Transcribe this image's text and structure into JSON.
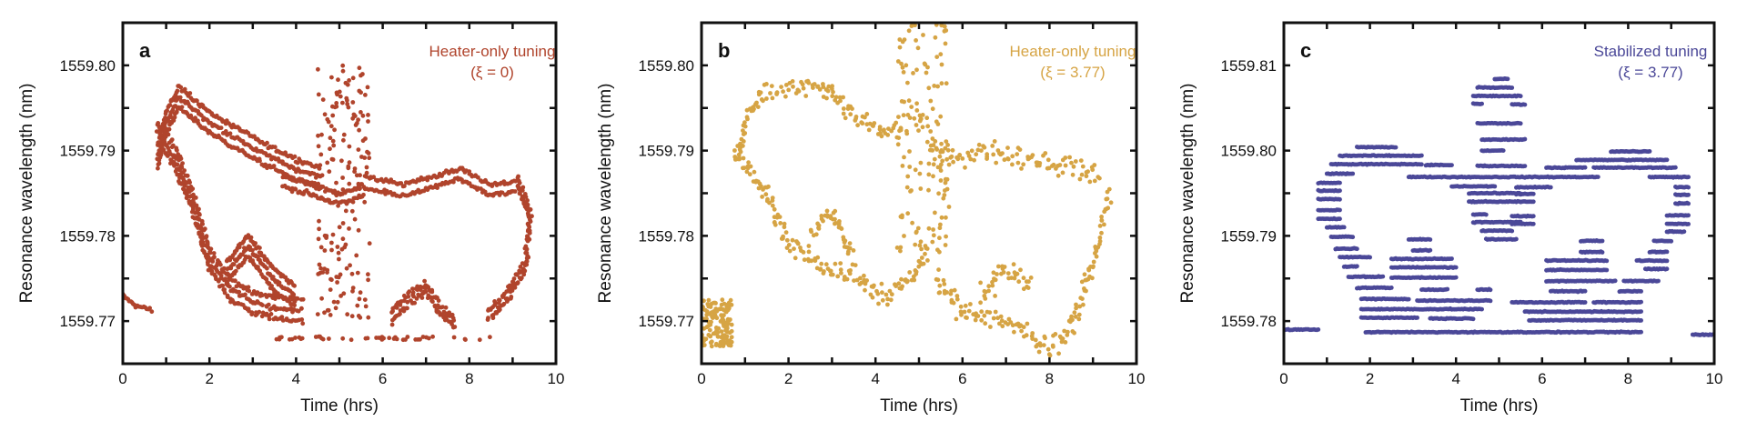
{
  "chart_data": [
    {
      "type": "scatter",
      "panel_label": "a",
      "annotation": [
        "Heater-only tuning",
        "(ξ = 0)"
      ],
      "color": "#b0442c",
      "xlabel": "Time (hrs)",
      "ylabel": "Resonance wavelength (nm)",
      "xlim": [
        0,
        10
      ],
      "ylim": [
        1559.765,
        1559.805
      ],
      "xticks": [
        0,
        2,
        4,
        6,
        8,
        10
      ],
      "xtick_labels": [
        "0",
        "2",
        "4",
        "6",
        "8",
        "10"
      ],
      "yticks": [
        1559.77,
        1559.78,
        1559.79,
        1559.8
      ],
      "ytick_labels": [
        "1559.77",
        "1559.78",
        "1559.79",
        "1559.80"
      ],
      "traces": [
        {
          "pts": [
            [
              0,
              1559.773
            ],
            [
              0.3,
              1559.7718
            ],
            [
              0.7,
              1559.7712
            ]
          ],
          "jitter": [
            0.02,
            0.0003
          ],
          "offsets": [
            0
          ]
        },
        {
          "pts": [
            [
              0.8,
              1559.7905
            ],
            [
              1.0,
              1559.7945
            ],
            [
              1.3,
              1559.7975
            ],
            [
              2.0,
              1559.7945
            ],
            [
              3.0,
              1559.7915
            ],
            [
              4.0,
              1559.789
            ],
            [
              4.6,
              1559.788
            ]
          ],
          "jitter": [
            0.02,
            0.0004
          ],
          "offsets": [
            0,
            -0.0012,
            -0.0024
          ]
        },
        {
          "pts": [
            [
              0.8,
              1559.791
            ],
            [
              1.2,
              1559.788
            ],
            [
              1.6,
              1559.783
            ],
            [
              2.0,
              1559.776
            ],
            [
              2.5,
              1559.7725
            ],
            [
              3.0,
              1559.771
            ],
            [
              3.6,
              1559.7703
            ],
            [
              4.2,
              1559.77
            ]
          ],
          "jitter": [
            0.05,
            0.0005
          ],
          "offsets": [
            0,
            0.0012,
            0.0024
          ]
        },
        {
          "pts": [
            [
              2.4,
              1559.777
            ],
            [
              2.9,
              1559.78
            ],
            [
              3.5,
              1559.776
            ],
            [
              4.0,
              1559.774
            ]
          ],
          "jitter": [
            0.03,
            0.0004
          ],
          "offsets": [
            0,
            -0.0012,
            -0.0024
          ]
        },
        {
          "pts": [
            [
              3.7,
              1559.787
            ],
            [
              4.4,
              1559.786
            ],
            [
              5.0,
              1559.7848
            ],
            [
              5.6,
              1559.786
            ]
          ],
          "jitter": [
            0.03,
            0.0004
          ],
          "offsets": [
            0,
            -0.0012
          ]
        },
        {
          "pts": [
            [
              5.6,
              1559.787
            ],
            [
              6.5,
              1559.786
            ],
            [
              7.2,
              1559.787
            ],
            [
              7.8,
              1559.788
            ],
            [
              8.5,
              1559.786
            ],
            [
              9.1,
              1559.7865
            ]
          ],
          "jitter": [
            0.03,
            0.0004
          ],
          "offsets": [
            0,
            -0.0013
          ]
        },
        {
          "pts": [
            [
              9.1,
              1559.786
            ],
            [
              9.4,
              1559.782
            ],
            [
              9.3,
              1559.776
            ],
            [
              8.8,
              1559.772
            ],
            [
              8.4,
              1559.77
            ]
          ],
          "jitter": [
            0.06,
            0.0005
          ],
          "offsets": [
            0,
            0.001
          ]
        },
        {
          "pts": [
            [
              6.2,
              1559.771
            ],
            [
              6.6,
              1559.773
            ],
            [
              7.0,
              1559.7745
            ],
            [
              7.3,
              1559.772
            ],
            [
              7.7,
              1559.77
            ]
          ],
          "jitter": [
            0.05,
            0.0006
          ],
          "offsets": [
            0,
            -0.001
          ]
        }
      ],
      "blobs": [
        {
          "x": [
            4.5,
            5.7
          ],
          "y": [
            1559.77,
            1559.8
          ],
          "n": 170
        },
        {
          "x": [
            3.5,
            8.5
          ],
          "y": [
            1559.7678,
            1559.7682
          ],
          "n": 45
        }
      ],
      "hlines": []
    },
    {
      "type": "scatter",
      "panel_label": "b",
      "annotation": [
        "Heater-only tuning",
        "(ξ = 3.77)"
      ],
      "color": "#d6a444",
      "xlabel": "Time (hrs)",
      "ylabel": "Resonance wavelength (nm)",
      "xlim": [
        0,
        10
      ],
      "ylim": [
        1559.765,
        1559.805
      ],
      "xticks": [
        0,
        2,
        4,
        6,
        8,
        10
      ],
      "xtick_labels": [
        "0",
        "2",
        "4",
        "6",
        "8",
        "10"
      ],
      "yticks": [
        1559.77,
        1559.78,
        1559.79,
        1559.8
      ],
      "ytick_labels": [
        "1559.77",
        "1559.78",
        "1559.79",
        "1559.80"
      ],
      "traces": [
        {
          "pts": [
            [
              0.8,
              1559.789
            ],
            [
              1.0,
              1559.793
            ],
            [
              1.4,
              1559.797
            ],
            [
              2.0,
              1559.797
            ],
            [
              2.7,
              1559.798
            ],
            [
              3.5,
              1559.794
            ],
            [
              4.2,
              1559.792
            ],
            [
              4.6,
              1559.793
            ]
          ],
          "jitter": [
            0.08,
            0.0018
          ],
          "offsets": [
            0
          ]
        },
        {
          "pts": [
            [
              0.8,
              1559.79
            ],
            [
              1.5,
              1559.785
            ],
            [
              2.0,
              1559.779
            ],
            [
              3.0,
              1559.776
            ],
            [
              3.6,
              1559.775
            ],
            [
              4.2,
              1559.773
            ],
            [
              4.8,
              1559.775
            ],
            [
              5.2,
              1559.778
            ]
          ],
          "jitter": [
            0.08,
            0.0018
          ],
          "offsets": [
            0
          ]
        },
        {
          "pts": [
            [
              2.5,
              1559.78
            ],
            [
              3.0,
              1559.783
            ],
            [
              3.5,
              1559.777
            ]
          ],
          "jitter": [
            0.08,
            0.0018
          ],
          "offsets": [
            0
          ]
        },
        {
          "pts": [
            [
              5.5,
              1559.789
            ],
            [
              6.5,
              1559.79
            ],
            [
              7.5,
              1559.789
            ],
            [
              8.5,
              1559.788
            ],
            [
              9.2,
              1559.787
            ]
          ],
          "jitter": [
            0.08,
            0.0018
          ],
          "offsets": [
            0
          ]
        },
        {
          "pts": [
            [
              5.4,
              1559.775
            ],
            [
              6.0,
              1559.771
            ],
            [
              7.0,
              1559.77
            ],
            [
              8.0,
              1559.767
            ],
            [
              8.4,
              1559.768
            ],
            [
              9.0,
              1559.777
            ],
            [
              9.4,
              1559.785
            ]
          ],
          "jitter": [
            0.1,
            0.0018
          ],
          "offsets": [
            0
          ]
        },
        {
          "pts": [
            [
              6.4,
              1559.773
            ],
            [
              7.0,
              1559.776
            ],
            [
              7.6,
              1559.774
            ]
          ],
          "jitter": [
            0.1,
            0.0018
          ],
          "offsets": [
            0
          ]
        }
      ],
      "blobs": [
        {
          "x": [
            0,
            0.7
          ],
          "y": [
            1559.767,
            1559.7725
          ],
          "n": 140
        },
        {
          "x": [
            4.5,
            5.7
          ],
          "y": [
            1559.778,
            1559.805
          ],
          "n": 150
        }
      ],
      "hlines": []
    },
    {
      "type": "scatter",
      "panel_label": "c",
      "annotation": [
        "Stabilized tuning",
        "(ξ = 3.77)"
      ],
      "color": "#4b4898",
      "xlabel": "Time (hrs)",
      "ylabel": "Resonance wavelength (nm)",
      "xlim": [
        0,
        10
      ],
      "ylim": [
        1559.775,
        1559.815
      ],
      "xticks": [
        0,
        2,
        4,
        6,
        8,
        10
      ],
      "xtick_labels": [
        "0",
        "2",
        "4",
        "6",
        "8",
        "10"
      ],
      "yticks": [
        1559.78,
        1559.79,
        1559.8,
        1559.81
      ],
      "ytick_labels": [
        "1559.78",
        "1559.79",
        "1559.80",
        "1559.81"
      ],
      "traces": [],
      "blobs": [],
      "hlines": [
        [
          0,
          0.8,
          1559.779
        ],
        [
          1.9,
          8.3,
          1559.7787
        ],
        [
          9.5,
          10,
          1559.7784
        ],
        [
          1.8,
          3.1,
          1559.7804
        ],
        [
          3.4,
          4.4,
          1559.7803
        ],
        [
          5.7,
          8.3,
          1559.7801
        ],
        [
          1.8,
          4.6,
          1559.7814
        ],
        [
          5.6,
          8.3,
          1559.7811
        ],
        [
          1.8,
          2.9,
          1559.7826
        ],
        [
          3.1,
          4.8,
          1559.7824
        ],
        [
          5.3,
          7.0,
          1559.7822
        ],
        [
          7.2,
          8.3,
          1559.7822
        ],
        [
          1.7,
          2.5,
          1559.7839
        ],
        [
          3.2,
          3.8,
          1559.7837
        ],
        [
          4.5,
          4.8,
          1559.7837
        ],
        [
          6.2,
          7.0,
          1559.7835
        ],
        [
          7.8,
          8.3,
          1559.7835
        ],
        [
          1.5,
          2.3,
          1559.7852
        ],
        [
          2.5,
          4.0,
          1559.7851
        ],
        [
          6.1,
          7.7,
          1559.7847
        ],
        [
          7.9,
          8.7,
          1559.7847
        ],
        [
          1.4,
          1.7,
          1559.7864
        ],
        [
          2.5,
          4.0,
          1559.7863
        ],
        [
          6.1,
          7.5,
          1559.786
        ],
        [
          8.4,
          8.9,
          1559.7861
        ],
        [
          1.3,
          2.0,
          1559.7875
        ],
        [
          2.5,
          3.9,
          1559.7873
        ],
        [
          6.1,
          7.5,
          1559.7871
        ],
        [
          8.2,
          8.9,
          1559.7871
        ],
        [
          1.2,
          1.7,
          1559.7885
        ],
        [
          3.0,
          3.4,
          1559.7883
        ],
        [
          6.9,
          7.4,
          1559.7881
        ],
        [
          8.5,
          8.9,
          1559.7881
        ],
        [
          1.1,
          1.6,
          1559.7899
        ],
        [
          2.9,
          3.4,
          1559.7896
        ],
        [
          4.7,
          5.4,
          1559.7896
        ],
        [
          6.9,
          7.4,
          1559.7894
        ],
        [
          8.6,
          9.0,
          1559.7894
        ],
        [
          1.0,
          1.4,
          1559.791
        ],
        [
          4.6,
          5.3,
          1559.7906
        ],
        [
          8.9,
          9.3,
          1559.7905
        ],
        [
          0.8,
          1.3,
          1559.792
        ],
        [
          4.4,
          5.5,
          1559.7916
        ],
        [
          5.3,
          5.8,
          1559.7914
        ],
        [
          8.9,
          9.4,
          1559.7914
        ],
        [
          0.8,
          1.3,
          1559.793
        ],
        [
          4.4,
          4.7,
          1559.7925
        ],
        [
          5.3,
          5.8,
          1559.7923
        ],
        [
          8.9,
          9.4,
          1559.7924
        ],
        [
          0.8,
          1.3,
          1559.7943
        ],
        [
          4.3,
          5.5,
          1559.794
        ],
        [
          5.5,
          5.8,
          1559.794
        ],
        [
          9.1,
          9.4,
          1559.7938
        ],
        [
          0.8,
          1.3,
          1559.7953
        ],
        [
          4.3,
          5.5,
          1559.795
        ],
        [
          5.4,
          5.8,
          1559.7949
        ],
        [
          9.1,
          9.4,
          1559.7948
        ],
        [
          0.8,
          1.3,
          1559.7962
        ],
        [
          3.9,
          4.9,
          1559.7958
        ],
        [
          5.4,
          6.2,
          1559.7957
        ],
        [
          9.1,
          9.4,
          1559.7957
        ],
        [
          1.0,
          1.6,
          1559.7973
        ],
        [
          2.9,
          7.3,
          1559.7969
        ],
        [
          8.5,
          9.4,
          1559.7969
        ],
        [
          1.1,
          3.2,
          1559.7984
        ],
        [
          3.3,
          3.9,
          1559.7983
        ],
        [
          4.5,
          5.6,
          1559.7982
        ],
        [
          6.1,
          7.0,
          1559.798
        ],
        [
          7.2,
          9.1,
          1559.798
        ],
        [
          1.3,
          3.2,
          1559.7994
        ],
        [
          6.8,
          8.9,
          1559.7989
        ],
        [
          1.7,
          2.6,
          1559.8004
        ],
        [
          7.6,
          8.5,
          1559.7999
        ],
        [
          4.6,
          5.6,
          1559.8013
        ],
        [
          4.6,
          5.1,
          1559.8
        ],
        [
          4.5,
          5.5,
          1559.8032
        ],
        [
          4.4,
          4.6,
          1559.8055
        ],
        [
          5.3,
          5.6,
          1559.8054
        ],
        [
          4.4,
          5.5,
          1559.8064
        ],
        [
          4.5,
          5.3,
          1559.8074
        ],
        [
          4.9,
          5.2,
          1559.8084
        ]
      ]
    }
  ]
}
